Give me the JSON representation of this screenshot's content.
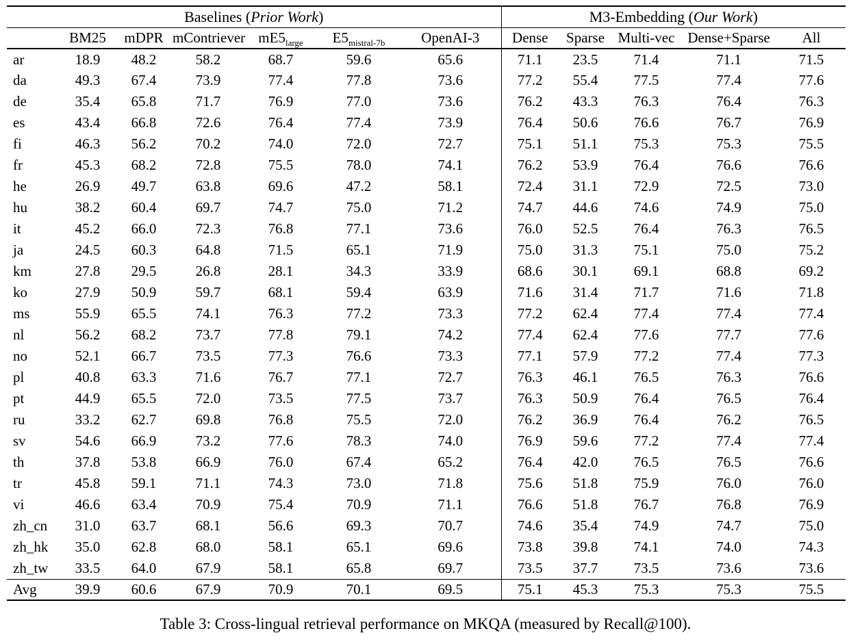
{
  "table": {
    "group_headers": {
      "baselines": {
        "pre": "Baselines (",
        "italic": "Prior Work",
        "post": ")"
      },
      "m3": {
        "pre": "M3-Embedding (",
        "italic": "Our Work",
        "post": ")"
      }
    },
    "columns": [
      {
        "main": "BM25",
        "sub": ""
      },
      {
        "main": "mDPR",
        "sub": ""
      },
      {
        "main": "mContriever",
        "sub": ""
      },
      {
        "main": "mE5",
        "sub": "large"
      },
      {
        "main": "E5",
        "sub": "mistral-7b"
      },
      {
        "main": "OpenAI-3",
        "sub": ""
      },
      {
        "main": "Dense",
        "sub": ""
      },
      {
        "main": "Sparse",
        "sub": ""
      },
      {
        "main": "Multi-vec",
        "sub": ""
      },
      {
        "main": "Dense+Sparse",
        "sub": ""
      },
      {
        "main": "All",
        "sub": ""
      }
    ],
    "rows": [
      {
        "lang": "ar",
        "values": [
          "18.9",
          "48.2",
          "58.2",
          "68.7",
          "59.6",
          "65.6",
          "71.1",
          "23.5",
          "71.4",
          "71.1",
          "71.5"
        ],
        "bold": [
          10
        ]
      },
      {
        "lang": "da",
        "values": [
          "49.3",
          "67.4",
          "73.9",
          "77.4",
          "77.8",
          "73.6",
          "77.2",
          "55.4",
          "77.5",
          "77.4",
          "77.6"
        ],
        "bold": [
          4
        ]
      },
      {
        "lang": "de",
        "values": [
          "35.4",
          "65.8",
          "71.7",
          "76.9",
          "77.0",
          "73.6",
          "76.2",
          "43.3",
          "76.3",
          "76.4",
          "76.3"
        ],
        "bold": [
          4
        ]
      },
      {
        "lang": "es",
        "values": [
          "43.4",
          "66.8",
          "72.6",
          "76.4",
          "77.4",
          "73.9",
          "76.4",
          "50.6",
          "76.6",
          "76.7",
          "76.9"
        ],
        "bold": [
          4
        ]
      },
      {
        "lang": "fi",
        "values": [
          "46.3",
          "56.2",
          "70.2",
          "74.0",
          "72.0",
          "72.7",
          "75.1",
          "51.1",
          "75.3",
          "75.3",
          "75.5"
        ],
        "bold": [
          10
        ]
      },
      {
        "lang": "fr",
        "values": [
          "45.3",
          "68.2",
          "72.8",
          "75.5",
          "78.0",
          "74.1",
          "76.2",
          "53.9",
          "76.4",
          "76.6",
          "76.6"
        ],
        "bold": [
          4
        ]
      },
      {
        "lang": "he",
        "values": [
          "26.9",
          "49.7",
          "63.8",
          "69.6",
          "47.2",
          "58.1",
          "72.4",
          "31.1",
          "72.9",
          "72.5",
          "73.0"
        ],
        "bold": [
          10
        ]
      },
      {
        "lang": "hu",
        "values": [
          "38.2",
          "60.4",
          "69.7",
          "74.7",
          "75.0",
          "71.2",
          "74.7",
          "44.6",
          "74.6",
          "74.9",
          "75.0"
        ],
        "bold": [
          4,
          10
        ]
      },
      {
        "lang": "it",
        "values": [
          "45.2",
          "66.0",
          "72.3",
          "76.8",
          "77.1",
          "73.6",
          "76.0",
          "52.5",
          "76.4",
          "76.3",
          "76.5"
        ],
        "bold": [
          4
        ]
      },
      {
        "lang": "ja",
        "values": [
          "24.5",
          "60.3",
          "64.8",
          "71.5",
          "65.1",
          "71.9",
          "75.0",
          "31.3",
          "75.1",
          "75.0",
          "75.2"
        ],
        "bold": [
          10
        ]
      },
      {
        "lang": "km",
        "values": [
          "27.8",
          "29.5",
          "26.8",
          "28.1",
          "34.3",
          "33.9",
          "68.6",
          "30.1",
          "69.1",
          "68.8",
          "69.2"
        ],
        "bold": [
          10
        ]
      },
      {
        "lang": "ko",
        "values": [
          "27.9",
          "50.9",
          "59.7",
          "68.1",
          "59.4",
          "63.9",
          "71.6",
          "31.4",
          "71.7",
          "71.6",
          "71.8"
        ],
        "bold": [
          10
        ]
      },
      {
        "lang": "ms",
        "values": [
          "55.9",
          "65.5",
          "74.1",
          "76.3",
          "77.2",
          "73.3",
          "77.2",
          "62.4",
          "77.4",
          "77.4",
          "77.4"
        ],
        "bold": [
          8,
          9,
          10
        ]
      },
      {
        "lang": "nl",
        "values": [
          "56.2",
          "68.2",
          "73.7",
          "77.8",
          "79.1",
          "74.2",
          "77.4",
          "62.4",
          "77.6",
          "77.7",
          "77.6"
        ],
        "bold": [
          4
        ]
      },
      {
        "lang": "no",
        "values": [
          "52.1",
          "66.7",
          "73.5",
          "77.3",
          "76.6",
          "73.3",
          "77.1",
          "57.9",
          "77.2",
          "77.4",
          "77.3"
        ],
        "bold": [
          9
        ]
      },
      {
        "lang": "pl",
        "values": [
          "40.8",
          "63.3",
          "71.6",
          "76.7",
          "77.1",
          "72.7",
          "76.3",
          "46.1",
          "76.5",
          "76.3",
          "76.6"
        ],
        "bold": [
          4
        ]
      },
      {
        "lang": "pt",
        "values": [
          "44.9",
          "65.5",
          "72.0",
          "73.5",
          "77.5",
          "73.7",
          "76.3",
          "50.9",
          "76.4",
          "76.5",
          "76.4"
        ],
        "bold": [
          4
        ]
      },
      {
        "lang": "ru",
        "values": [
          "33.2",
          "62.7",
          "69.8",
          "76.8",
          "75.5",
          "72.0",
          "76.2",
          "36.9",
          "76.4",
          "76.2",
          "76.5"
        ],
        "bold": [
          3
        ]
      },
      {
        "lang": "sv",
        "values": [
          "54.6",
          "66.9",
          "73.2",
          "77.6",
          "78.3",
          "74.0",
          "76.9",
          "59.6",
          "77.2",
          "77.4",
          "77.4"
        ],
        "bold": [
          4
        ]
      },
      {
        "lang": "th",
        "values": [
          "37.8",
          "53.8",
          "66.9",
          "76.0",
          "67.4",
          "65.2",
          "76.4",
          "42.0",
          "76.5",
          "76.5",
          "76.6"
        ],
        "bold": [
          10
        ]
      },
      {
        "lang": "tr",
        "values": [
          "45.8",
          "59.1",
          "71.1",
          "74.3",
          "73.0",
          "71.8",
          "75.6",
          "51.8",
          "75.9",
          "76.0",
          "76.0"
        ],
        "bold": [
          9,
          10
        ]
      },
      {
        "lang": "vi",
        "values": [
          "46.6",
          "63.4",
          "70.9",
          "75.4",
          "70.9",
          "71.1",
          "76.6",
          "51.8",
          "76.7",
          "76.8",
          "76.9"
        ],
        "bold": [
          10
        ]
      },
      {
        "lang": "zh_cn",
        "values": [
          "31.0",
          "63.7",
          "68.1",
          "56.6",
          "69.3",
          "70.7",
          "74.6",
          "35.4",
          "74.9",
          "74.7",
          "75.0"
        ],
        "bold": [
          10
        ]
      },
      {
        "lang": "zh_hk",
        "values": [
          "35.0",
          "62.8",
          "68.0",
          "58.1",
          "65.1",
          "69.6",
          "73.8",
          "39.8",
          "74.1",
          "74.0",
          "74.3"
        ],
        "bold": [
          10
        ]
      },
      {
        "lang": "zh_tw",
        "values": [
          "33.5",
          "64.0",
          "67.9",
          "58.1",
          "65.8",
          "69.7",
          "73.5",
          "37.7",
          "73.5",
          "73.6",
          "73.6"
        ],
        "bold": [
          9,
          10
        ]
      }
    ],
    "avg_row": {
      "lang": "Avg",
      "values": [
        "39.9",
        "60.6",
        "67.9",
        "70.9",
        "70.1",
        "69.5",
        "75.1",
        "45.3",
        "75.3",
        "75.3",
        "75.5"
      ],
      "bold": [
        10
      ]
    }
  },
  "caption": "Table 3: Cross-lingual retrieval performance on MKQA (measured by Recall@100)."
}
